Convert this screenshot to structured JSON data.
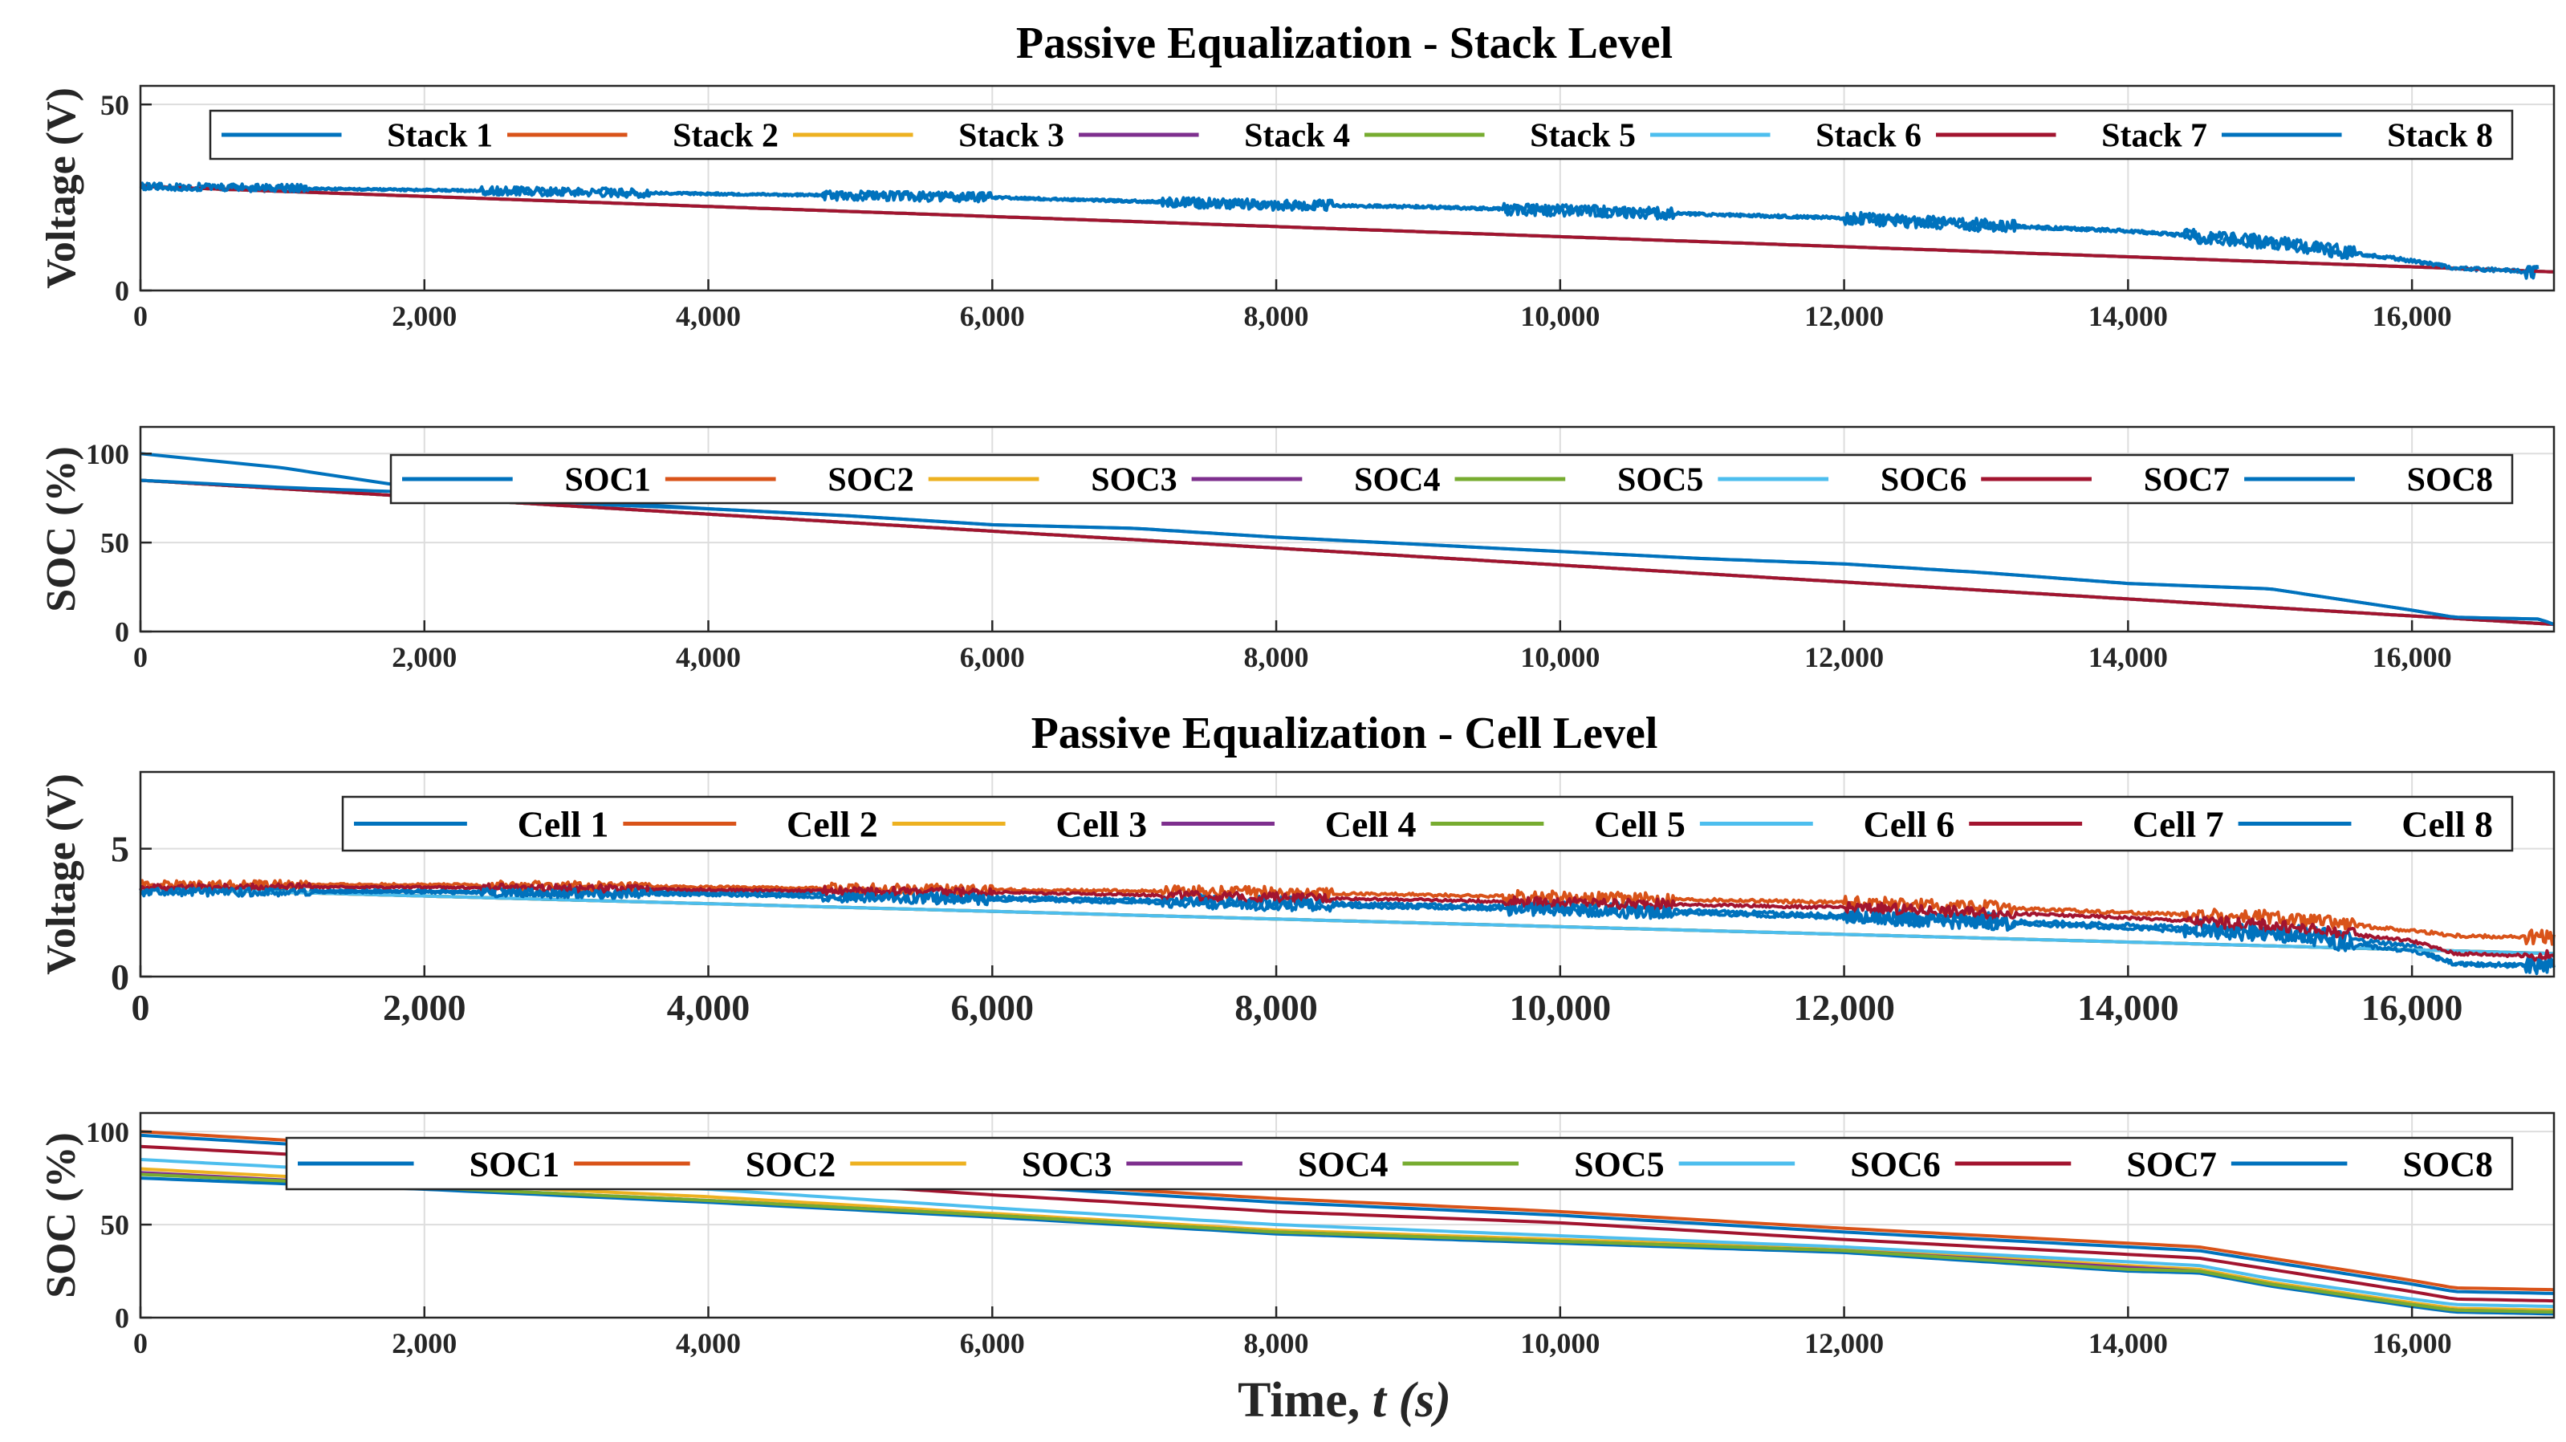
{
  "colors": {
    "c1": "#0072BD",
    "c2": "#D95319",
    "c3": "#EDB120",
    "c4": "#7E2F8E",
    "c5": "#77AC30",
    "c6": "#4DBEEE",
    "c7": "#A2142F",
    "c8": "#0072BD",
    "grid": "#dddddd",
    "axis": "#262626"
  },
  "titles": {
    "stack": "Passive Equalization - Stack Level",
    "cell": "Passive Equalization - Cell Level"
  },
  "xlabel": {
    "main": "Time, ",
    "italic": "t (s)"
  },
  "chart_data": [
    {
      "type": "line",
      "title": "Passive Equalization - Stack Level",
      "xlabel": "",
      "ylabel": "Voltage (V)",
      "xlim": [
        0,
        17000
      ],
      "ylim": [
        0,
        55
      ],
      "yticks": [
        0,
        50
      ],
      "xticks": [
        0,
        2000,
        4000,
        6000,
        8000,
        10000,
        12000,
        14000,
        16000
      ],
      "xtick_labels": [
        "0",
        "2,000",
        "4,000",
        "6,000",
        "8,000",
        "10,000",
        "12,000",
        "14,000",
        "16,000"
      ],
      "legend": "top",
      "series": [
        {
          "name": "Stack 1",
          "color": "#0072BD",
          "x": [
            0,
            1000,
            2000,
            3000,
            4000,
            5000,
            6000,
            7000,
            8000,
            9000,
            10000,
            11000,
            12000,
            13000,
            14000,
            15000,
            16000,
            16300,
            16900
          ],
          "values": [
            28,
            27.5,
            27,
            26.5,
            26,
            25.5,
            25,
            24,
            23,
            22.5,
            21.5,
            20.5,
            19.5,
            17.5,
            16,
            13,
            8,
            6,
            5
          ],
          "noise": 2
        },
        {
          "name": "Stack 2",
          "color": "#D95319",
          "x": [
            0,
            17000
          ],
          "values": [
            28,
            5
          ]
        },
        {
          "name": "Stack 3",
          "color": "#EDB120",
          "x": [
            0,
            17000
          ],
          "values": [
            28,
            5
          ]
        },
        {
          "name": "Stack 4",
          "color": "#7E2F8E",
          "x": [
            0,
            17000
          ],
          "values": [
            28,
            5
          ]
        },
        {
          "name": "Stack 5",
          "color": "#77AC30",
          "x": [
            0,
            17000
          ],
          "values": [
            28,
            5
          ]
        },
        {
          "name": "Stack 6",
          "color": "#4DBEEE",
          "x": [
            0,
            17000
          ],
          "values": [
            28,
            5
          ]
        },
        {
          "name": "Stack 7",
          "color": "#A2142F",
          "x": [
            0,
            17000
          ],
          "values": [
            28,
            5
          ]
        },
        {
          "name": "Stack 8",
          "color": "#0072BD",
          "x": [
            0,
            1000,
            2000,
            3000,
            4000,
            5000,
            6000,
            7000,
            8000,
            9000,
            10000,
            11000,
            12000,
            13000,
            14000,
            15000,
            16000,
            16300,
            16900
          ],
          "values": [
            28,
            27.5,
            27,
            26.5,
            26,
            25.5,
            25,
            24,
            23,
            22.5,
            21.5,
            20.5,
            19.5,
            17.5,
            16,
            13,
            8,
            6,
            5
          ],
          "noise": 2
        }
      ]
    },
    {
      "type": "line",
      "title": "",
      "ylabel": "SOC (%)",
      "xlim": [
        0,
        17000
      ],
      "ylim": [
        0,
        115
      ],
      "yticks": [
        0,
        50,
        100
      ],
      "xticks": [
        0,
        2000,
        4000,
        6000,
        8000,
        10000,
        12000,
        14000,
        16000
      ],
      "xtick_labels": [
        "0",
        "2,000",
        "4,000",
        "6,000",
        "8,000",
        "10,000",
        "12,000",
        "14,000",
        "16,000"
      ],
      "legend": "top-right",
      "series": [
        {
          "name": "SOC1",
          "color": "#0072BD",
          "x": [
            0,
            1000,
            2000,
            3000,
            4000,
            5000,
            6000,
            7000,
            8000,
            9000,
            10000,
            11000,
            12000,
            13000,
            14000,
            15000,
            16000,
            16300,
            16900,
            17000
          ],
          "values": [
            100,
            92,
            80,
            72,
            69,
            65,
            60,
            58,
            53,
            49,
            45,
            41,
            38,
            33,
            27,
            24,
            12,
            8,
            7,
            4
          ]
        },
        {
          "name": "SOC2",
          "color": "#D95319",
          "x": [
            0,
            17000
          ],
          "values": [
            85,
            4
          ]
        },
        {
          "name": "SOC3",
          "color": "#EDB120",
          "x": [
            0,
            17000
          ],
          "values": [
            85,
            4
          ]
        },
        {
          "name": "SOC4",
          "color": "#7E2F8E",
          "x": [
            0,
            17000
          ],
          "values": [
            85,
            4
          ]
        },
        {
          "name": "SOC5",
          "color": "#77AC30",
          "x": [
            0,
            17000
          ],
          "values": [
            85,
            4
          ]
        },
        {
          "name": "SOC6",
          "color": "#4DBEEE",
          "x": [
            0,
            17000
          ],
          "values": [
            85,
            4
          ]
        },
        {
          "name": "SOC7",
          "color": "#A2142F",
          "x": [
            0,
            17000
          ],
          "values": [
            85,
            4
          ]
        },
        {
          "name": "SOC8",
          "color": "#0072BD",
          "x": [
            0,
            1000,
            2000,
            3000,
            4000,
            5000,
            6000,
            7000,
            8000,
            9000,
            10000,
            11000,
            12000,
            13000,
            14000,
            15000,
            16000,
            16300,
            16900,
            17000
          ],
          "values": [
            85,
            81,
            78,
            74,
            69,
            65,
            60,
            58,
            53,
            49,
            45,
            41,
            38,
            33,
            27,
            24,
            12,
            8,
            7,
            4
          ]
        }
      ]
    },
    {
      "type": "line",
      "title": "Passive Equalization - Cell Level",
      "ylabel": "Voltage (V)",
      "xlim": [
        0,
        17000
      ],
      "ylim": [
        0,
        8
      ],
      "yticks": [
        0,
        5
      ],
      "xticks": [
        0,
        2000,
        4000,
        6000,
        8000,
        10000,
        12000,
        14000,
        16000
      ],
      "xtick_labels": [
        "0",
        "2,000",
        "4,000",
        "6,000",
        "8,000",
        "10,000",
        "12,000",
        "14,000",
        "16,000"
      ],
      "legend": "top-right",
      "series": [
        {
          "name": "Cell 1",
          "color": "#0072BD",
          "x": [
            0,
            2000,
            4000,
            6000,
            8000,
            10000,
            12000,
            14000,
            15000,
            16000,
            16300,
            17000
          ],
          "values": [
            3.4,
            3.35,
            3.3,
            3.1,
            2.9,
            2.7,
            2.4,
            2.0,
            1.8,
            1.2,
            0.5,
            0.4
          ],
          "noise": 0.35
        },
        {
          "name": "Cell 2",
          "color": "#D95319",
          "x": [
            0,
            2000,
            4000,
            6000,
            8000,
            10000,
            12000,
            14000,
            15000,
            16000,
            16300,
            17000
          ],
          "values": [
            3.6,
            3.6,
            3.5,
            3.4,
            3.3,
            3.1,
            2.9,
            2.5,
            2.3,
            1.8,
            1.6,
            1.5
          ],
          "noise": 0.3
        },
        {
          "name": "Cell 3",
          "color": "#EDB120",
          "x": [
            0,
            17000
          ],
          "values": [
            3.45,
            0.9
          ]
        },
        {
          "name": "Cell 4",
          "color": "#7E2F8E",
          "x": [
            0,
            17000
          ],
          "values": [
            3.45,
            0.9
          ]
        },
        {
          "name": "Cell 5",
          "color": "#77AC30",
          "x": [
            0,
            17000
          ],
          "values": [
            3.45,
            0.9
          ]
        },
        {
          "name": "Cell 6",
          "color": "#4DBEEE",
          "x": [
            0,
            17000
          ],
          "values": [
            3.45,
            0.9
          ]
        },
        {
          "name": "Cell 7",
          "color": "#A2142F",
          "x": [
            0,
            2000,
            4000,
            6000,
            8000,
            10000,
            12000,
            14000,
            15000,
            16000,
            16300,
            17000
          ],
          "values": [
            3.5,
            3.5,
            3.4,
            3.3,
            3.1,
            2.9,
            2.7,
            2.3,
            2.0,
            1.4,
            0.9,
            0.8
          ],
          "noise": 0.25
        },
        {
          "name": "Cell 8",
          "color": "#0072BD",
          "x": [
            0,
            2000,
            4000,
            6000,
            8000,
            10000,
            12000,
            14000,
            15000,
            16000,
            16300,
            17000
          ],
          "values": [
            3.3,
            3.3,
            3.2,
            3.0,
            2.8,
            2.6,
            2.3,
            1.9,
            1.6,
            1.0,
            0.5,
            0.4
          ],
          "noise": 0.3
        }
      ]
    },
    {
      "type": "line",
      "title": "",
      "xlabel": "Time, t (s)",
      "ylabel": "SOC (%)",
      "xlim": [
        0,
        17000
      ],
      "ylim": [
        0,
        110
      ],
      "yticks": [
        0,
        50,
        100
      ],
      "xticks": [
        0,
        2000,
        4000,
        6000,
        8000,
        10000,
        12000,
        14000,
        16000
      ],
      "xtick_labels": [
        "0",
        "2,000",
        "4,000",
        "6,000",
        "8,000",
        "10,000",
        "12,000",
        "14,000",
        "16,000"
      ],
      "legend": "top-right",
      "series": [
        {
          "name": "SOC1",
          "color": "#0072BD",
          "x": [
            0,
            2000,
            4000,
            6000,
            8000,
            10000,
            12000,
            14000,
            14500,
            15000,
            16000,
            16300,
            17000
          ],
          "values": [
            75,
            69,
            62,
            54,
            45,
            40,
            35,
            25,
            24,
            17,
            6,
            3,
            2
          ]
        },
        {
          "name": "SOC2",
          "color": "#D95319",
          "x": [
            0,
            2000,
            4000,
            6000,
            8000,
            10000,
            12000,
            14000,
            14500,
            15000,
            16000,
            16300,
            17000
          ],
          "values": [
            100,
            91,
            83,
            73,
            64,
            57,
            48,
            40,
            38,
            32,
            20,
            16,
            15
          ]
        },
        {
          "name": "SOC3",
          "color": "#EDB120",
          "x": [
            0,
            2000,
            4000,
            6000,
            8000,
            10000,
            12000,
            14000,
            14500,
            15000,
            16000,
            16300,
            17000
          ],
          "values": [
            80,
            72,
            65,
            56,
            47,
            42,
            37,
            28,
            26,
            19,
            8,
            5,
            4
          ]
        },
        {
          "name": "SOC4",
          "color": "#7E2F8E",
          "x": [
            0,
            2000,
            4000,
            6000,
            8000,
            10000,
            12000,
            14000,
            14500,
            15000,
            16000,
            16300,
            17000
          ],
          "values": [
            78,
            70,
            63,
            55,
            46,
            41,
            36,
            27,
            25,
            18,
            7,
            4,
            3
          ]
        },
        {
          "name": "SOC5",
          "color": "#77AC30",
          "x": [
            0,
            2000,
            4000,
            6000,
            8000,
            10000,
            12000,
            14000,
            14500,
            15000,
            16000,
            16300,
            17000
          ],
          "values": [
            77,
            70,
            63,
            55,
            46,
            41,
            36,
            26,
            25,
            18,
            7,
            4,
            3
          ]
        },
        {
          "name": "SOC6",
          "color": "#4DBEEE",
          "x": [
            0,
            2000,
            4000,
            6000,
            8000,
            10000,
            12000,
            14000,
            14500,
            15000,
            16000,
            16300,
            17000
          ],
          "values": [
            85,
            77,
            69,
            59,
            50,
            44,
            38,
            30,
            28,
            21,
            10,
            7,
            6
          ]
        },
        {
          "name": "SOC7",
          "color": "#A2142F",
          "x": [
            0,
            2000,
            4000,
            6000,
            8000,
            10000,
            12000,
            14000,
            14500,
            15000,
            16000,
            16300,
            17000
          ],
          "values": [
            92,
            84,
            76,
            66,
            57,
            51,
            42,
            34,
            32,
            26,
            14,
            10,
            9
          ]
        },
        {
          "name": "SOC8",
          "color": "#0072BD",
          "x": [
            0,
            2000,
            4000,
            6000,
            8000,
            10000,
            12000,
            14000,
            14500,
            15000,
            16000,
            16300,
            17000
          ],
          "values": [
            98,
            89,
            81,
            71,
            62,
            55,
            46,
            38,
            36,
            30,
            18,
            14,
            13
          ]
        }
      ]
    }
  ]
}
